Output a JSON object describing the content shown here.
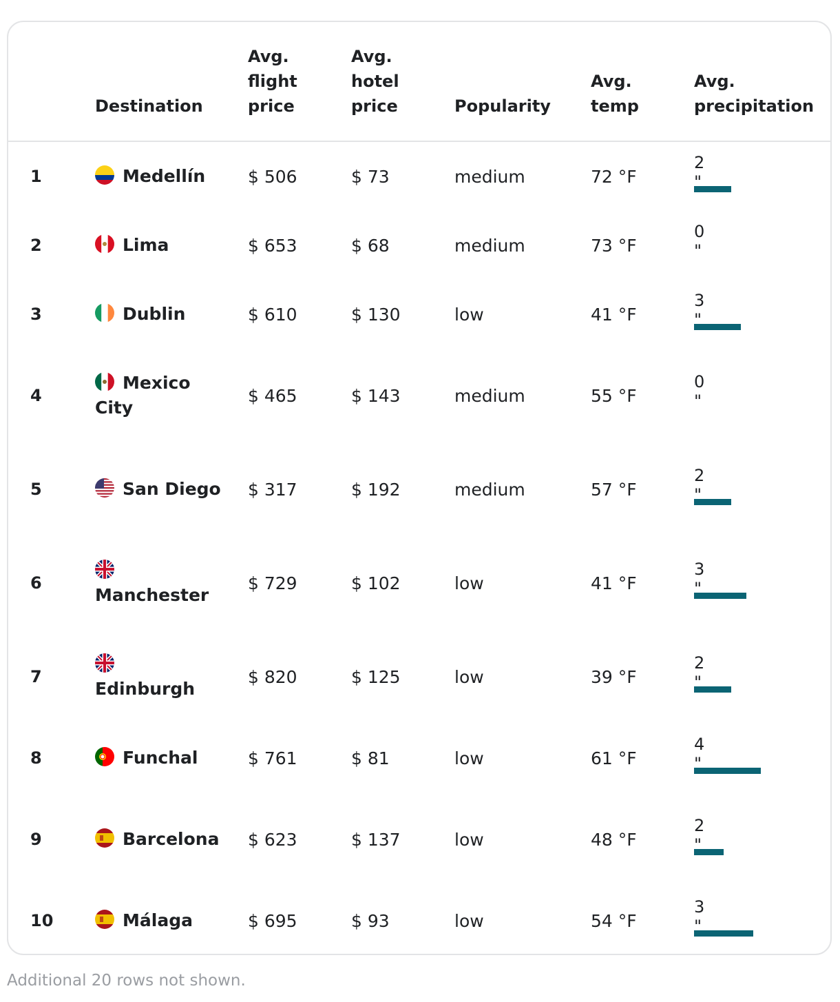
{
  "headers": {
    "destination": "Destination",
    "flight": "Avg.\nflight\nprice",
    "hotel": "Avg.\nhotel\nprice",
    "popularity": "Popularity",
    "temp": "Avg.\ntemp",
    "precip": "Avg.\nprecipitation"
  },
  "accent_color": "#0b6474",
  "rows": [
    {
      "rank": "1",
      "flag": "colombia",
      "city": "Medellín",
      "flight": "$ 506",
      "hotel": "$ 73",
      "popularity": "medium",
      "temp": "72 °F",
      "precip": "2 \"",
      "precip_in": 2
    },
    {
      "rank": "2",
      "flag": "peru",
      "city": "Lima",
      "flight": "$ 653",
      "hotel": "$ 68",
      "popularity": "medium",
      "temp": "73 °F",
      "precip": "0 \"",
      "precip_in": 0
    },
    {
      "rank": "3",
      "flag": "ireland",
      "city": "Dublin",
      "flight": "$ 610",
      "hotel": "$ 130",
      "popularity": "low",
      "temp": "41 °F",
      "precip": "3 \"",
      "precip_in": 2.5
    },
    {
      "rank": "4",
      "flag": "mexico",
      "city": "Mexico City",
      "flight": "$ 465",
      "hotel": "$ 143",
      "popularity": "medium",
      "temp": "55 °F",
      "precip": "0 \"",
      "precip_in": 0
    },
    {
      "rank": "5",
      "flag": "usa",
      "city": "San Diego",
      "flight": "$ 317",
      "hotel": "$ 192",
      "popularity": "medium",
      "temp": "57 °F",
      "precip": "2 \"",
      "precip_in": 2
    },
    {
      "rank": "6",
      "flag": "uk",
      "city": "Manchester",
      "flight": "$ 729",
      "hotel": "$ 102",
      "popularity": "low",
      "temp": "41 °F",
      "precip": "3 \"",
      "precip_in": 2.8
    },
    {
      "rank": "7",
      "flag": "uk",
      "city": "Edinburgh",
      "flight": "$ 820",
      "hotel": "$ 125",
      "popularity": "low",
      "temp": "39 °F",
      "precip": "2 \"",
      "precip_in": 2
    },
    {
      "rank": "8",
      "flag": "portugal",
      "city": "Funchal",
      "flight": "$ 761",
      "hotel": "$ 81",
      "popularity": "low",
      "temp": "61 °F",
      "precip": "4 \"",
      "precip_in": 3.6
    },
    {
      "rank": "9",
      "flag": "spain",
      "city": "Barcelona",
      "flight": "$ 623",
      "hotel": "$ 137",
      "popularity": "low",
      "temp": "48 °F",
      "precip": "2 \"",
      "precip_in": 1.6
    },
    {
      "rank": "10",
      "flag": "spain",
      "city": "Málaga",
      "flight": "$ 695",
      "hotel": "$ 93",
      "popularity": "low",
      "temp": "54 °F",
      "precip": "3 \"",
      "precip_in": 3.2
    }
  ],
  "footer": "Additional 20 rows not shown."
}
